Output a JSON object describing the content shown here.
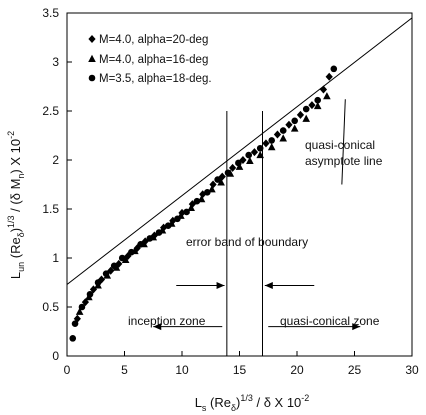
{
  "chart_data": {
    "type": "scatter",
    "xlim": [
      0,
      30
    ],
    "ylim": [
      0,
      3.5
    ],
    "x_ticks": [
      0,
      5,
      10,
      15,
      20,
      25,
      30
    ],
    "y_ticks": [
      0,
      0.5,
      1,
      1.5,
      2,
      2.5,
      3,
      3.5
    ],
    "x_tick_labels": [
      "0",
      "5",
      "10",
      "15",
      "20",
      "25",
      "30"
    ],
    "y_tick_labels": [
      "0",
      "0.5",
      "1",
      "1.5",
      "2",
      "2.5",
      "3",
      "3.5"
    ],
    "xlabel": {
      "a": "L",
      "a_sub": "s",
      "b": " (Re",
      "b_sub": "δ",
      "c": ")",
      "c_sup": "1/3",
      "d": " / δ X 10",
      "d_sup": "-2"
    },
    "ylabel": {
      "a": "L",
      "a_sub": "un",
      "b": " (Re",
      "b_sub": "δ",
      "c": ")",
      "c_sup": "1/3",
      "d": " / (δ M",
      "d_sub": "n",
      "e": ") X 10",
      "e_sup": "-2"
    },
    "grid": false,
    "legend_position": "top-left",
    "series": [
      {
        "name": "M=4.0, alpha=20-deg",
        "marker": "diamond",
        "points": [
          [
            0.9,
            0.38
          ],
          [
            1.6,
            0.55
          ],
          [
            2.3,
            0.68
          ],
          [
            3.0,
            0.78
          ],
          [
            3.8,
            0.87
          ],
          [
            4.5,
            0.94
          ],
          [
            5.3,
            1.02
          ],
          [
            6.1,
            1.1
          ],
          [
            6.8,
            1.17
          ],
          [
            7.6,
            1.23
          ],
          [
            8.4,
            1.31
          ],
          [
            9.2,
            1.38
          ],
          [
            10.0,
            1.46
          ],
          [
            10.9,
            1.55
          ],
          [
            11.8,
            1.65
          ],
          [
            12.7,
            1.75
          ],
          [
            13.5,
            1.83
          ],
          [
            14.4,
            1.92
          ],
          [
            15.3,
            2.0
          ],
          [
            16.3,
            2.08
          ],
          [
            17.3,
            2.17
          ],
          [
            18.3,
            2.26
          ],
          [
            19.3,
            2.36
          ],
          [
            20.3,
            2.46
          ],
          [
            21.3,
            2.56
          ],
          [
            22.3,
            2.72
          ],
          [
            22.8,
            2.85
          ]
        ]
      },
      {
        "name": "M=4.0, alpha=16-deg",
        "marker": "triangle",
        "points": [
          [
            1.1,
            0.45
          ],
          [
            1.9,
            0.6
          ],
          [
            2.7,
            0.72
          ],
          [
            3.5,
            0.82
          ],
          [
            4.3,
            0.9
          ],
          [
            5.1,
            0.98
          ],
          [
            5.9,
            1.07
          ],
          [
            6.7,
            1.14
          ],
          [
            7.5,
            1.21
          ],
          [
            8.3,
            1.28
          ],
          [
            9.1,
            1.35
          ],
          [
            9.9,
            1.43
          ],
          [
            10.8,
            1.51
          ],
          [
            11.7,
            1.6
          ],
          [
            12.6,
            1.7
          ],
          [
            13.4,
            1.77
          ],
          [
            14.2,
            1.86
          ],
          [
            15.0,
            1.93
          ],
          [
            15.9,
            1.99
          ],
          [
            16.8,
            2.05
          ],
          [
            17.8,
            2.13
          ],
          [
            18.8,
            2.22
          ],
          [
            19.8,
            2.32
          ],
          [
            20.8,
            2.42
          ],
          [
            21.8,
            2.55
          ],
          [
            22.6,
            2.65
          ]
        ]
      },
      {
        "name": "M=3.5, alpha=18-deg.",
        "marker": "circle",
        "points": [
          [
            0.5,
            0.18
          ],
          [
            0.7,
            0.33
          ],
          [
            1.3,
            0.5
          ],
          [
            2.0,
            0.63
          ],
          [
            2.7,
            0.75
          ],
          [
            3.4,
            0.84
          ],
          [
            4.1,
            0.92
          ],
          [
            4.8,
            1.0
          ],
          [
            5.6,
            1.06
          ],
          [
            6.4,
            1.14
          ],
          [
            7.2,
            1.2
          ],
          [
            8.0,
            1.26
          ],
          [
            8.8,
            1.33
          ],
          [
            9.6,
            1.4
          ],
          [
            10.4,
            1.47
          ],
          [
            11.3,
            1.58
          ],
          [
            12.2,
            1.67
          ],
          [
            13.1,
            1.8
          ],
          [
            14.0,
            1.87
          ],
          [
            14.9,
            1.97
          ],
          [
            15.8,
            2.05
          ],
          [
            16.8,
            2.12
          ],
          [
            17.8,
            2.2
          ],
          [
            18.8,
            2.3
          ],
          [
            19.8,
            2.4
          ],
          [
            20.8,
            2.52
          ],
          [
            21.8,
            2.61
          ],
          [
            23.2,
            2.93
          ]
        ]
      }
    ],
    "asymptote_line": {
      "x": [
        0,
        30
      ],
      "y": [
        0.73,
        3.45
      ]
    },
    "vertical_lines": [
      13.9,
      17.0
    ],
    "arrows": [
      {
        "from": [
          9.5,
          0.72
        ],
        "to": [
          13.7,
          0.72
        ]
      },
      {
        "from": [
          21.5,
          0.72
        ],
        "to": [
          17.2,
          0.72
        ]
      },
      {
        "from": [
          13.5,
          0.3
        ],
        "to": [
          7.5,
          0.3
        ]
      },
      {
        "from": [
          17.5,
          0.3
        ],
        "to": [
          25.5,
          0.3
        ]
      }
    ],
    "annotations": {
      "asymptote_line1": "quasi-conical",
      "asymptote_line2": "asymptote line",
      "error_band": "error band of boundary",
      "inception_zone": "inception zone",
      "quasi_conical_zone": "quasi-conical zone"
    },
    "leader_line": {
      "from": [
        23.9,
        1.75
      ],
      "to": [
        24.2,
        2.62
      ]
    }
  }
}
